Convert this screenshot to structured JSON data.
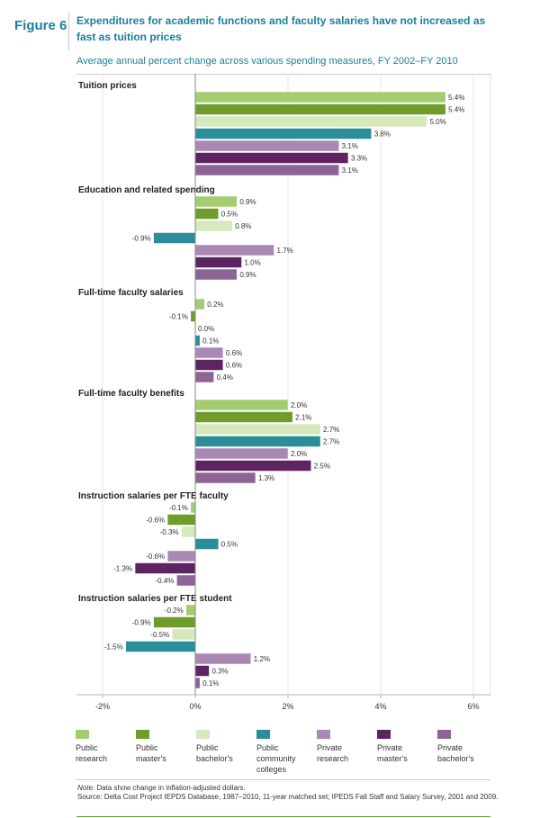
{
  "figure": {
    "label": "Figure 6",
    "title": "Expenditures for academic functions and faculty salaries have not increased as fast as tuition prices",
    "subtitle": "Average annual percent change across various spending measures, FY 2002–FY 2010"
  },
  "chart_data": {
    "type": "bar",
    "orientation": "horizontal",
    "xlim": [
      -2.8,
      6.4
    ],
    "xticks": [
      -2,
      0,
      2,
      4,
      6
    ],
    "xtick_labels": [
      "-2%",
      "0%",
      "2%",
      "4%",
      "6%"
    ],
    "categories": [
      "Tuition prices",
      "Education and related spending",
      "Full-time faculty salaries",
      "Full-time faculty benefits",
      "Instruction salaries per FTE faculty",
      "Instruction salaries per FTE student"
    ],
    "series": [
      {
        "name": "Public research",
        "color": "#a3cd6e",
        "values": [
          5.4,
          0.9,
          0.2,
          2.0,
          -0.1,
          -0.2
        ],
        "labels": [
          "5.4%",
          "0.9%",
          "0.2%",
          "2.0%",
          "-0.1%",
          "-0.2%"
        ]
      },
      {
        "name": "Public master's",
        "color": "#6f9c2b",
        "values": [
          5.4,
          0.5,
          -0.1,
          2.1,
          -0.6,
          -0.9
        ],
        "labels": [
          "5.4%",
          "0.5%",
          "-0.1%",
          "2.1%",
          "-0.6%",
          "-0.9%"
        ]
      },
      {
        "name": "Public bachelor's",
        "color": "#d7e8bd",
        "values": [
          5.0,
          0.8,
          0.0,
          2.7,
          -0.3,
          -0.5
        ],
        "labels": [
          "5.0%",
          "0.8%",
          "0.0%",
          "2.7%",
          "-0.3%",
          "-0.5%"
        ]
      },
      {
        "name": "Public community colleges",
        "color": "#2a8e9a",
        "values": [
          3.8,
          -0.9,
          0.1,
          2.7,
          0.5,
          -1.5
        ],
        "labels": [
          "3.8%",
          "-0.9%",
          "0.1%",
          "2.7%",
          "0.5%",
          "-1.5%"
        ]
      },
      {
        "name": "Private research",
        "color": "#a988b3",
        "values": [
          3.1,
          1.7,
          0.6,
          2.0,
          -0.6,
          1.2
        ],
        "labels": [
          "3.1%",
          "1.7%",
          "0.6%",
          "2.0%",
          "-0.6%",
          "1.2%"
        ]
      },
      {
        "name": "Private master's",
        "color": "#5e2462",
        "values": [
          3.3,
          1.0,
          0.6,
          2.5,
          -1.3,
          0.3
        ],
        "labels": [
          "3.3%",
          "1.0%",
          "0.6%",
          "2.5%",
          "-1.3%",
          "0.3%"
        ]
      },
      {
        "name": "Private bachelor's",
        "color": "#8c6595",
        "values": [
          3.1,
          0.9,
          0.4,
          1.3,
          -0.4,
          0.1
        ],
        "labels": [
          "3.1%",
          "0.9%",
          "0.4%",
          "1.3%",
          "-0.4%",
          "0.1%"
        ]
      }
    ]
  },
  "legend": [
    {
      "text": "Public\nresearch",
      "color": "#a3cd6e"
    },
    {
      "text": "Public\nmaster's",
      "color": "#6f9c2b"
    },
    {
      "text": "Public\nbachelor's",
      "color": "#d7e8bd"
    },
    {
      "text": "Public\ncommunity\ncolleges",
      "color": "#2a8e9a"
    },
    {
      "text": "Private\nresearch",
      "color": "#a988b3"
    },
    {
      "text": "Private\nmaster's",
      "color": "#5e2462"
    },
    {
      "text": "Private\nbachelor's",
      "color": "#8c6595"
    }
  ],
  "notes": {
    "note_label": "Note:",
    "note_text": " Data show change in inflation-adjusted dollars.",
    "source": "Source: Delta Cost Project IEPDS Database, 1987–2010, 11-year matched set; IPEDS Fall Staff and Salary Survey, 2001 and 2009."
  }
}
